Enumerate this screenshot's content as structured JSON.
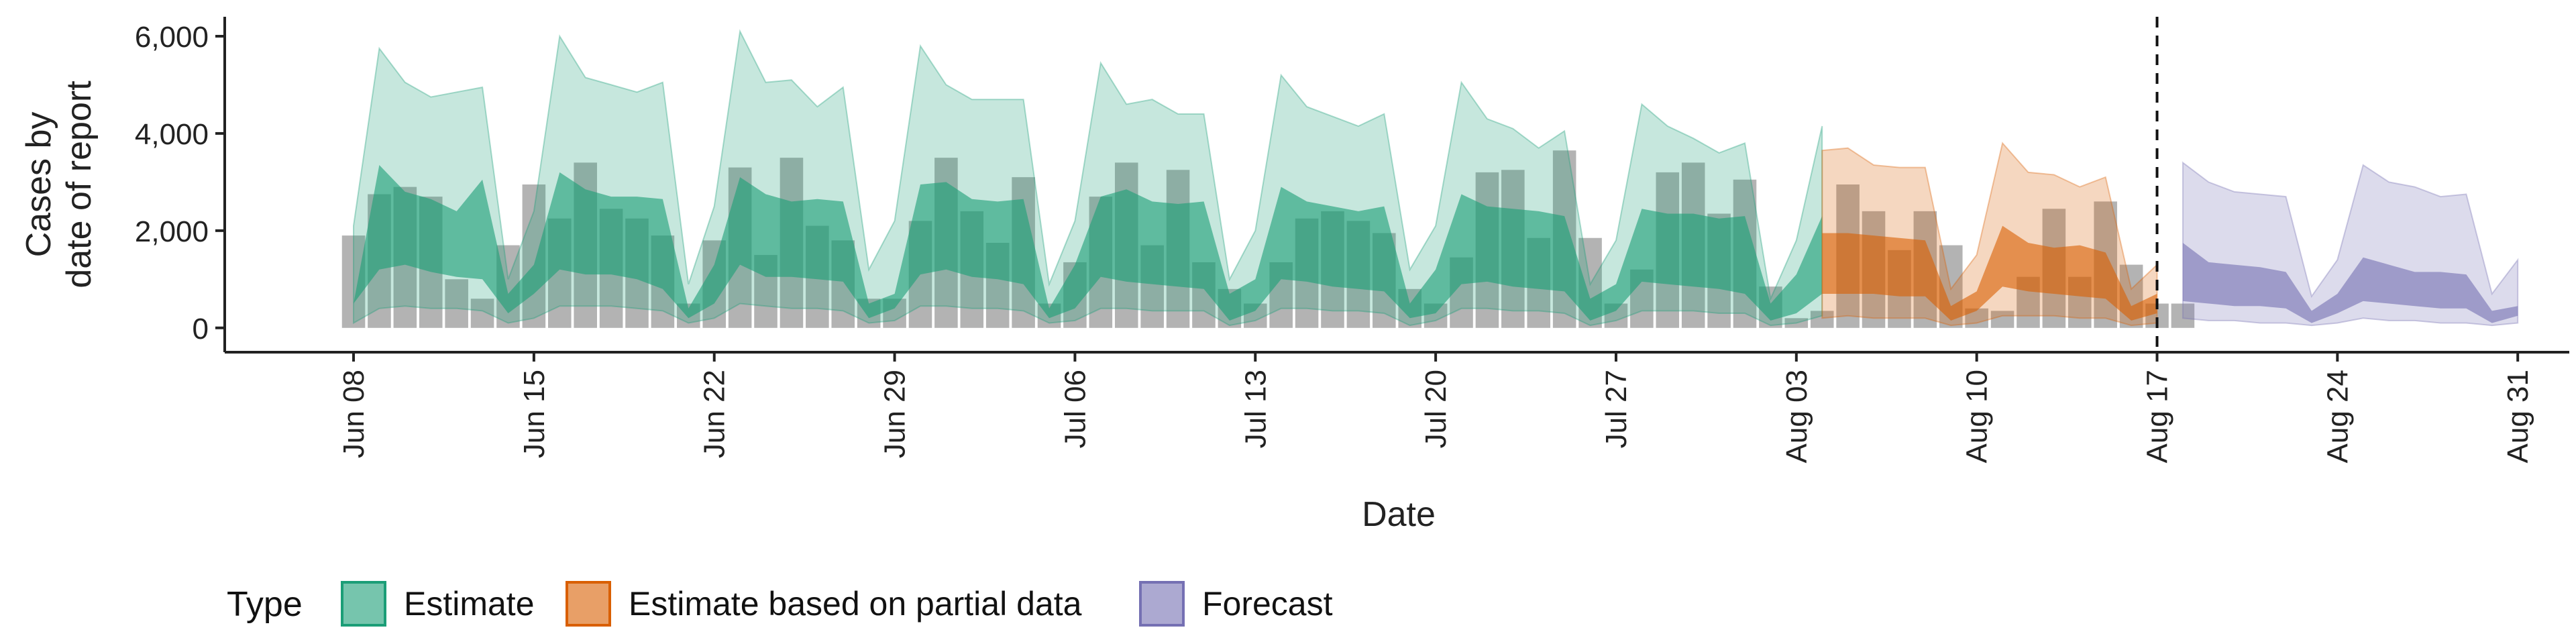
{
  "chart_data": {
    "type": "area",
    "xlabel": "Date",
    "ylabel_lines": [
      "Cases by",
      "date of report"
    ],
    "ylim": [
      -500,
      6400
    ],
    "yticks": [
      0,
      2000,
      4000,
      6000
    ],
    "ytick_labels": [
      "0",
      "2,000",
      "4,000",
      "6,000"
    ],
    "xlim": [
      "2020-06-03",
      "2020-09-02"
    ],
    "xticks": [
      "2020-06-08",
      "2020-06-15",
      "2020-06-22",
      "2020-06-29",
      "2020-07-06",
      "2020-07-13",
      "2020-07-20",
      "2020-07-27",
      "2020-08-03",
      "2020-08-10",
      "2020-08-17",
      "2020-08-24",
      "2020-08-31"
    ],
    "xtick_labels": [
      "Jun 08",
      "Jun 15",
      "Jun 22",
      "Jun 29",
      "Jul 06",
      "Jul 13",
      "Jul 20",
      "Jul 27",
      "Aug 03",
      "Aug 10",
      "Aug 17",
      "Aug 24",
      "Aug 31"
    ],
    "vline_date": "2020-08-17",
    "legend": {
      "title": "Type",
      "position": "bottom",
      "items": [
        {
          "label": "Estimate",
          "fill": "#1b9e77"
        },
        {
          "label": "Estimate based on partial data",
          "fill": "#d95f02"
        },
        {
          "label": "Forecast",
          "fill": "#7570b3"
        }
      ]
    },
    "bars": {
      "color": "#b3b3b3",
      "start_date": "2020-06-08",
      "values": [
        1900,
        2750,
        2900,
        2700,
        1000,
        600,
        1700,
        2950,
        2250,
        3400,
        2450,
        2250,
        1900,
        500,
        1800,
        3300,
        1500,
        3500,
        2100,
        1800,
        600,
        600,
        2200,
        3500,
        2400,
        1750,
        3100,
        500,
        1350,
        2700,
        3400,
        1700,
        3250,
        1350,
        800,
        500,
        1350,
        2250,
        2400,
        2200,
        1950,
        800,
        500,
        1450,
        3200,
        3250,
        1850,
        3650,
        1850,
        500,
        1200,
        3200,
        3400,
        2350,
        3050,
        850,
        200,
        350,
        2950,
        2400,
        1600,
        2400,
        1700,
        400,
        350,
        1050,
        2450,
        1050,
        2600,
        1300,
        500,
        500
      ]
    },
    "series": [
      {
        "name": "Estimate",
        "color": "#1b9e77",
        "start_date": "2020-06-08",
        "inner_low": [
          500,
          1200,
          1300,
          1150,
          1050,
          1000,
          300,
          700,
          1200,
          1100,
          1100,
          1000,
          800,
          200,
          500,
          1300,
          1050,
          1050,
          1000,
          950,
          200,
          400,
          1100,
          1200,
          1050,
          1000,
          900,
          200,
          400,
          1050,
          950,
          900,
          850,
          800,
          150,
          350,
          1000,
          950,
          850,
          800,
          750,
          200,
          300,
          900,
          950,
          850,
          800,
          750,
          150,
          350,
          950,
          900,
          850,
          800,
          700,
          150,
          300,
          700
        ],
        "inner_high": [
          500,
          3350,
          2800,
          2650,
          2400,
          3050,
          700,
          1300,
          3200,
          2850,
          2700,
          2700,
          2650,
          400,
          1300,
          3100,
          2750,
          2600,
          2650,
          2600,
          500,
          700,
          2950,
          3000,
          2650,
          2600,
          2650,
          400,
          1300,
          2700,
          2850,
          2600,
          2550,
          2600,
          700,
          1000,
          2900,
          2600,
          2500,
          2400,
          2500,
          500,
          1200,
          2750,
          2500,
          2450,
          2400,
          2300,
          600,
          900,
          2450,
          2350,
          2350,
          2250,
          2300,
          500,
          1100,
          2300
        ],
        "outer_low": [
          100,
          400,
          450,
          400,
          400,
          350,
          100,
          200,
          450,
          450,
          450,
          400,
          350,
          100,
          200,
          500,
          450,
          400,
          400,
          350,
          100,
          150,
          450,
          450,
          400,
          400,
          350,
          100,
          150,
          400,
          400,
          350,
          350,
          350,
          50,
          150,
          400,
          400,
          350,
          350,
          300,
          50,
          150,
          400,
          400,
          350,
          350,
          300,
          50,
          150,
          350,
          350,
          350,
          300,
          300,
          50,
          100,
          250
        ],
        "outer_high": [
          2100,
          5750,
          5050,
          4750,
          4850,
          4950,
          1000,
          2400,
          6000,
          5150,
          5000,
          4850,
          5050,
          900,
          2500,
          6100,
          5050,
          5100,
          4550,
          4950,
          1200,
          2200,
          5800,
          5000,
          4700,
          4700,
          4700,
          900,
          2200,
          5450,
          4600,
          4700,
          4400,
          4400,
          1000,
          2000,
          5200,
          4550,
          4350,
          4150,
          4400,
          1200,
          2100,
          5050,
          4300,
          4100,
          3700,
          4050,
          900,
          1800,
          4600,
          4150,
          3900,
          3600,
          3800,
          600,
          1800,
          4150
        ]
      },
      {
        "name": "Estimate based on partial data",
        "color": "#d95f02",
        "start_date": "2020-08-04",
        "inner_low": [
          700,
          700,
          700,
          650,
          650,
          150,
          350,
          850,
          750,
          700,
          650,
          600,
          150,
          300
        ],
        "inner_high": [
          1950,
          1950,
          1900,
          1850,
          1800,
          450,
          750,
          2100,
          1750,
          1650,
          1700,
          1550,
          450,
          700
        ],
        "outer_low": [
          200,
          250,
          200,
          200,
          200,
          50,
          100,
          250,
          250,
          250,
          200,
          200,
          50,
          100
        ],
        "outer_high": [
          3650,
          3700,
          3350,
          3300,
          3300,
          800,
          1500,
          3800,
          3200,
          3150,
          2900,
          3100,
          800,
          1300
        ]
      },
      {
        "name": "Forecast",
        "color": "#7570b3",
        "start_date": "2020-08-18",
        "inner_low": [
          550,
          500,
          450,
          450,
          400,
          100,
          300,
          550,
          500,
          450,
          400,
          400,
          100,
          250
        ],
        "inner_high": [
          1750,
          1350,
          1300,
          1250,
          1150,
          350,
          700,
          1450,
          1300,
          1150,
          1150,
          1100,
          350,
          450
        ],
        "outer_low": [
          200,
          150,
          150,
          100,
          100,
          50,
          100,
          200,
          150,
          150,
          100,
          100,
          50,
          100
        ],
        "outer_high": [
          3400,
          3000,
          2800,
          2750,
          2700,
          650,
          1400,
          3350,
          3000,
          2900,
          2700,
          2750,
          700,
          1400
        ]
      }
    ]
  }
}
